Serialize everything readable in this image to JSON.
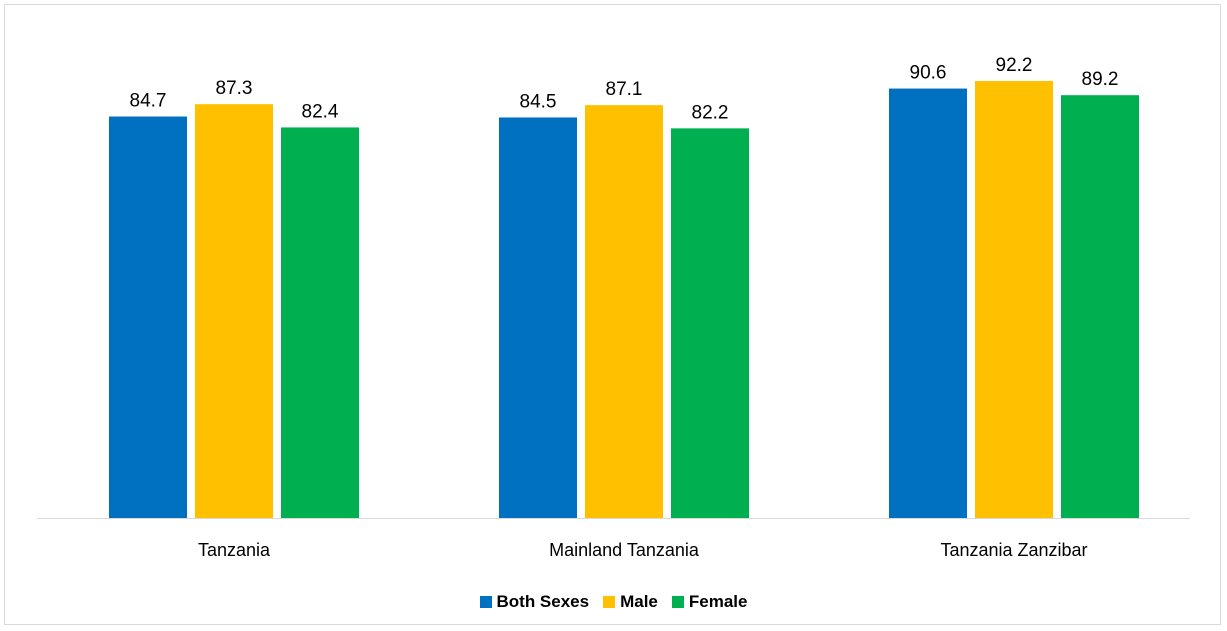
{
  "chart_data": {
    "type": "bar",
    "title": "",
    "xlabel": "",
    "ylabel": "",
    "categories": [
      "Tanzania",
      "Mainland Tanzania",
      "Tanzania Zanzibar"
    ],
    "series": [
      {
        "name": "Both Sexes",
        "color": "#0070C0",
        "values": [
          84.7,
          84.5,
          90.6
        ]
      },
      {
        "name": "Male",
        "color": "#FFC000",
        "values": [
          87.3,
          87.1,
          92.2
        ]
      },
      {
        "name": "Female",
        "color": "#00B050",
        "values": [
          82.4,
          82.2,
          89.2
        ]
      }
    ],
    "ylim": [
      0,
      100
    ],
    "grid": false,
    "legend_position": "bottom",
    "data_labels": true
  }
}
